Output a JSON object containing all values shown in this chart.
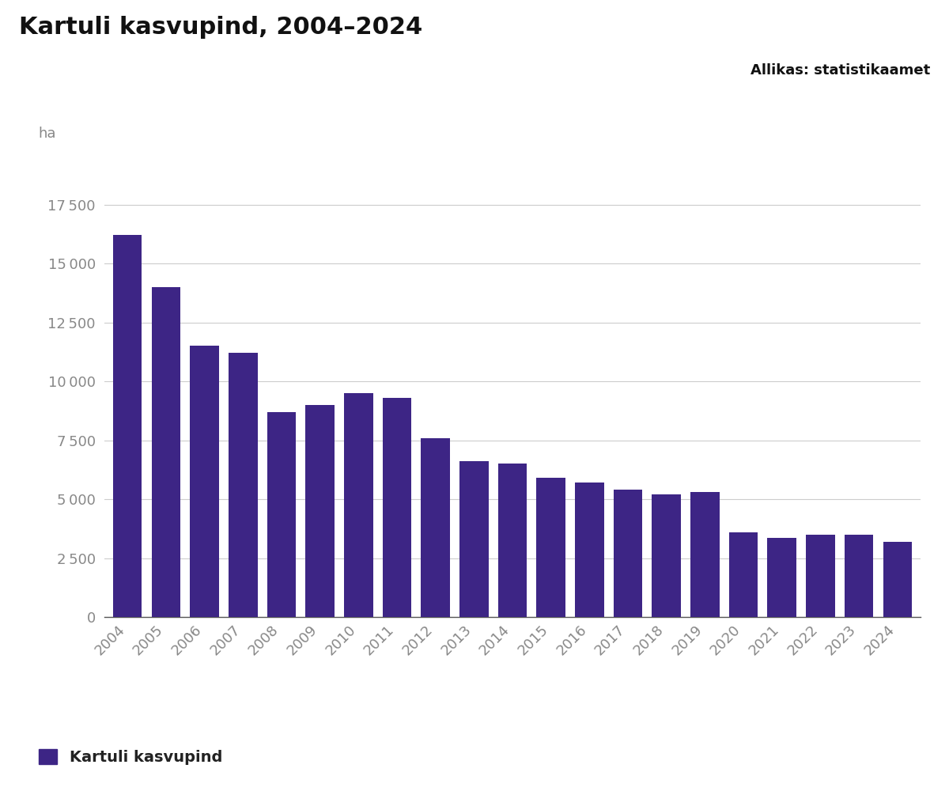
{
  "title": "Kartuli kasvupind, 2004–2024",
  "source": "Allikas: statistikaamet",
  "ylabel": "ha",
  "years": [
    2004,
    2005,
    2006,
    2007,
    2008,
    2009,
    2010,
    2011,
    2012,
    2013,
    2014,
    2015,
    2016,
    2017,
    2018,
    2019,
    2020,
    2021,
    2022,
    2023,
    2024
  ],
  "values": [
    16200,
    14000,
    11500,
    11200,
    8700,
    9000,
    9500,
    9300,
    7600,
    6600,
    6500,
    5900,
    5700,
    5400,
    5200,
    5300,
    3600,
    3350,
    3500,
    3500,
    3200
  ],
  "bar_color": "#3d2585",
  "background_color": "#ffffff",
  "grid_color": "#cccccc",
  "tick_color": "#888888",
  "yticks": [
    0,
    2500,
    5000,
    7500,
    10000,
    12500,
    15000,
    17500
  ],
  "ylim": [
    0,
    18800
  ],
  "legend_label": "Kartuli kasvupind",
  "title_fontsize": 22,
  "source_fontsize": 13,
  "axis_label_fontsize": 13,
  "tick_fontsize": 13,
  "legend_fontsize": 14
}
